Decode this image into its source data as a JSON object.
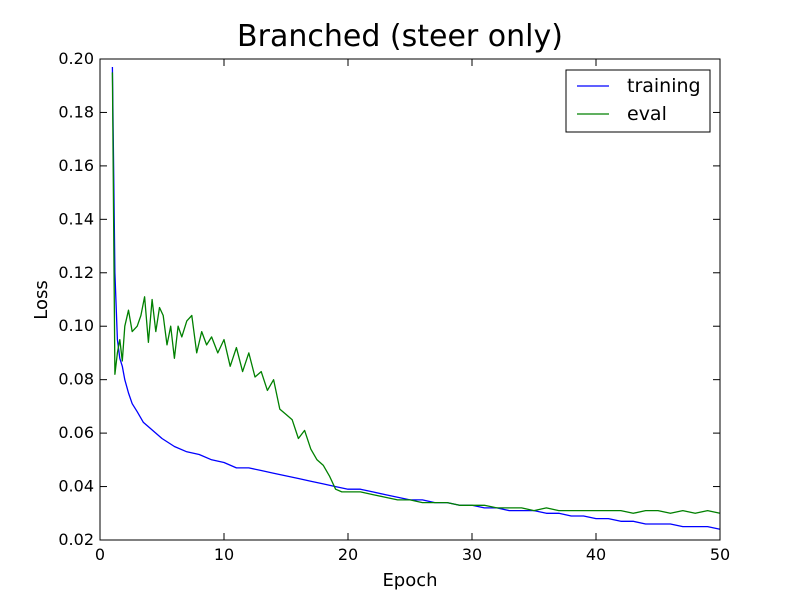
{
  "chart_data": {
    "type": "line",
    "title": "Branched (steer only)",
    "xlabel": "Epoch",
    "ylabel": "Loss",
    "xlim": [
      0,
      50
    ],
    "ylim": [
      0.02,
      0.2
    ],
    "xticks": [
      "0",
      "10",
      "20",
      "30",
      "40",
      "50"
    ],
    "yticks": [
      "0.02",
      "0.04",
      "0.06",
      "0.08",
      "0.10",
      "0.12",
      "0.14",
      "0.16",
      "0.18",
      "0.20"
    ],
    "grid": false,
    "legend_position": "top-right",
    "series": [
      {
        "name": "training",
        "color": "#0000ff",
        "x": [
          1,
          1.2,
          1.4,
          1.6,
          1.8,
          2,
          2.3,
          2.6,
          3,
          3.5,
          4,
          4.5,
          5,
          6,
          7,
          8,
          9,
          10,
          11,
          12,
          13,
          14,
          15,
          16,
          17,
          18,
          19,
          20,
          21,
          22,
          23,
          24,
          25,
          26,
          27,
          28,
          29,
          30,
          31,
          32,
          33,
          34,
          35,
          36,
          37,
          38,
          39,
          40,
          41,
          42,
          43,
          44,
          45,
          46,
          47,
          48,
          49,
          50
        ],
        "y": [
          0.197,
          0.12,
          0.095,
          0.088,
          0.085,
          0.08,
          0.075,
          0.071,
          0.068,
          0.064,
          0.062,
          0.06,
          0.058,
          0.055,
          0.053,
          0.052,
          0.05,
          0.049,
          0.047,
          0.047,
          0.046,
          0.045,
          0.044,
          0.043,
          0.042,
          0.041,
          0.04,
          0.039,
          0.039,
          0.038,
          0.037,
          0.036,
          0.035,
          0.035,
          0.034,
          0.034,
          0.033,
          0.033,
          0.032,
          0.032,
          0.031,
          0.031,
          0.031,
          0.03,
          0.03,
          0.029,
          0.029,
          0.028,
          0.028,
          0.027,
          0.027,
          0.026,
          0.026,
          0.026,
          0.025,
          0.025,
          0.025,
          0.024
        ]
      },
      {
        "name": "eval",
        "color": "#008000",
        "x": [
          1,
          1.2,
          1.4,
          1.6,
          1.8,
          2,
          2.3,
          2.6,
          3,
          3.3,
          3.6,
          3.9,
          4.2,
          4.5,
          4.8,
          5.1,
          5.4,
          5.7,
          6,
          6.3,
          6.6,
          7,
          7.4,
          7.8,
          8.2,
          8.6,
          9,
          9.5,
          10,
          10.5,
          11,
          11.5,
          12,
          12.5,
          13,
          13.5,
          14,
          14.5,
          15,
          15.5,
          16,
          16.5,
          17,
          17.5,
          18,
          18.5,
          19,
          19.5,
          20,
          21,
          22,
          23,
          24,
          25,
          26,
          27,
          28,
          29,
          30,
          31,
          32,
          33,
          34,
          35,
          36,
          37,
          38,
          39,
          40,
          41,
          42,
          43,
          44,
          45,
          46,
          47,
          48,
          49,
          50
        ],
        "y": [
          0.195,
          0.082,
          0.09,
          0.095,
          0.087,
          0.1,
          0.106,
          0.098,
          0.1,
          0.104,
          0.111,
          0.094,
          0.11,
          0.098,
          0.107,
          0.104,
          0.093,
          0.1,
          0.088,
          0.1,
          0.096,
          0.102,
          0.104,
          0.09,
          0.098,
          0.093,
          0.096,
          0.09,
          0.095,
          0.085,
          0.092,
          0.083,
          0.09,
          0.081,
          0.083,
          0.076,
          0.08,
          0.069,
          0.067,
          0.065,
          0.058,
          0.061,
          0.054,
          0.05,
          0.048,
          0.044,
          0.039,
          0.038,
          0.038,
          0.038,
          0.037,
          0.036,
          0.035,
          0.035,
          0.034,
          0.034,
          0.034,
          0.033,
          0.033,
          0.033,
          0.032,
          0.032,
          0.032,
          0.031,
          0.032,
          0.031,
          0.031,
          0.031,
          0.031,
          0.031,
          0.031,
          0.03,
          0.031,
          0.031,
          0.03,
          0.031,
          0.03,
          0.031,
          0.03
        ]
      }
    ]
  }
}
